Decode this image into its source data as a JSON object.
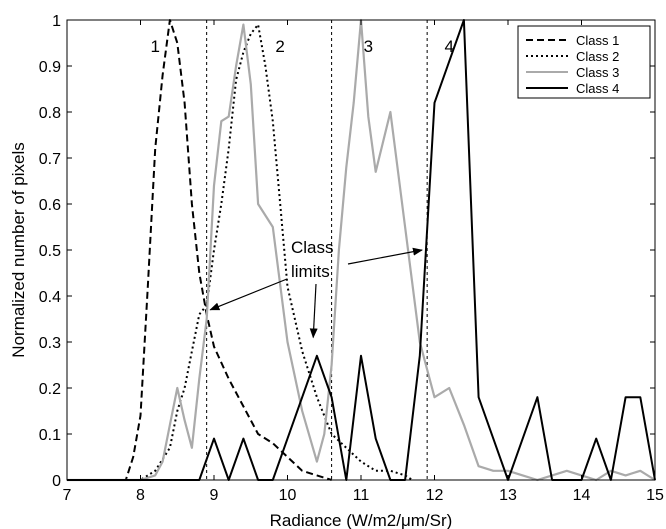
{
  "chart_data": {
    "type": "line",
    "title": "",
    "xlabel": "Radiance (W/m2/μm/Sr)",
    "ylabel": "Normalized number of pixels",
    "xlim": [
      7,
      15
    ],
    "ylim": [
      0,
      1
    ],
    "x_ticks": [
      "7",
      "8",
      "9",
      "10",
      "11",
      "12",
      "13",
      "14",
      "15"
    ],
    "y_ticks": [
      "0",
      "0.1",
      "0.2",
      "0.3",
      "0.4",
      "0.5",
      "0.6",
      "0.7",
      "0.8",
      "0.9",
      "1"
    ],
    "grid": false,
    "legend_position": "top-right",
    "series": [
      {
        "name": "Class 1",
        "style": "dashed",
        "color": "#000000",
        "x": [
          7.0,
          7.8,
          7.9,
          8.0,
          8.1,
          8.2,
          8.3,
          8.4,
          8.5,
          8.6,
          8.7,
          8.8,
          8.9,
          9.0,
          9.2,
          9.4,
          9.6,
          9.8,
          10.0,
          10.2,
          10.4,
          10.6
        ],
        "y": [
          0.0,
          0.0,
          0.05,
          0.14,
          0.42,
          0.72,
          0.88,
          1.0,
          0.95,
          0.82,
          0.6,
          0.45,
          0.36,
          0.29,
          0.22,
          0.16,
          0.1,
          0.08,
          0.05,
          0.02,
          0.01,
          0.0
        ]
      },
      {
        "name": "Class 2",
        "style": "dotted",
        "color": "#000000",
        "x": [
          7.0,
          8.0,
          8.2,
          8.4,
          8.5,
          8.6,
          8.7,
          8.8,
          8.9,
          9.0,
          9.1,
          9.2,
          9.3,
          9.4,
          9.5,
          9.6,
          9.7,
          9.8,
          9.9,
          10.0,
          10.2,
          10.4,
          10.6,
          10.8,
          11.0,
          11.2,
          11.4,
          11.6,
          11.7
        ],
        "y": [
          0.0,
          0.0,
          0.02,
          0.07,
          0.15,
          0.2,
          0.28,
          0.36,
          0.38,
          0.5,
          0.6,
          0.72,
          0.87,
          0.93,
          0.97,
          0.99,
          0.9,
          0.78,
          0.6,
          0.42,
          0.28,
          0.18,
          0.1,
          0.07,
          0.04,
          0.02,
          0.02,
          0.01,
          0.0
        ]
      },
      {
        "name": "Class 3",
        "style": "solid",
        "color": "#aaaaaa",
        "x": [
          7.0,
          8.0,
          8.2,
          8.3,
          8.4,
          8.5,
          8.6,
          8.7,
          8.8,
          8.9,
          9.0,
          9.1,
          9.2,
          9.3,
          9.4,
          9.5,
          9.6,
          9.8,
          10.0,
          10.2,
          10.4,
          10.5,
          10.6,
          10.7,
          10.8,
          10.9,
          11.0,
          11.1,
          11.2,
          11.4,
          11.6,
          11.8,
          12.0,
          12.2,
          12.4,
          12.6,
          12.8,
          13.0,
          13.2,
          13.4,
          13.6,
          13.8,
          14.0,
          14.2,
          14.4,
          14.6,
          14.8,
          15.0
        ],
        "y": [
          0.0,
          0.0,
          0.01,
          0.04,
          0.12,
          0.2,
          0.13,
          0.07,
          0.22,
          0.35,
          0.64,
          0.78,
          0.79,
          0.9,
          0.99,
          0.86,
          0.6,
          0.55,
          0.3,
          0.15,
          0.04,
          0.1,
          0.25,
          0.5,
          0.68,
          0.82,
          1.0,
          0.79,
          0.67,
          0.8,
          0.55,
          0.3,
          0.18,
          0.2,
          0.12,
          0.03,
          0.02,
          0.02,
          0.01,
          0.0,
          0.01,
          0.02,
          0.01,
          0.0,
          0.02,
          0.01,
          0.02,
          0.0
        ]
      },
      {
        "name": "Class 4",
        "style": "solid",
        "color": "#000000",
        "x": [
          7.0,
          8.8,
          9.0,
          9.2,
          9.4,
          9.6,
          9.8,
          10.0,
          10.2,
          10.4,
          10.6,
          10.8,
          11.0,
          11.2,
          11.4,
          11.6,
          11.8,
          12.0,
          12.2,
          12.4,
          12.6,
          12.8,
          13.0,
          13.2,
          13.4,
          13.6,
          13.8,
          14.0,
          14.2,
          14.4,
          14.6,
          14.8,
          15.0
        ],
        "y": [
          0.0,
          0.0,
          0.09,
          0.0,
          0.09,
          0.0,
          0.0,
          0.09,
          0.18,
          0.27,
          0.18,
          0.0,
          0.27,
          0.09,
          0.0,
          0.0,
          0.27,
          0.82,
          0.91,
          1.0,
          0.18,
          0.09,
          0.0,
          0.09,
          0.18,
          0.0,
          0.0,
          0.0,
          0.09,
          0.0,
          0.18,
          0.18,
          0.0
        ]
      }
    ],
    "class_limits": [
      8.9,
      10.6,
      11.9
    ],
    "region_labels": [
      {
        "text": "1",
        "x": 8.2
      },
      {
        "text": "2",
        "x": 9.9
      },
      {
        "text": "3",
        "x": 11.1
      },
      {
        "text": "4",
        "x": 12.2
      }
    ],
    "annotation": {
      "lines": [
        "Class",
        "limits"
      ]
    }
  }
}
